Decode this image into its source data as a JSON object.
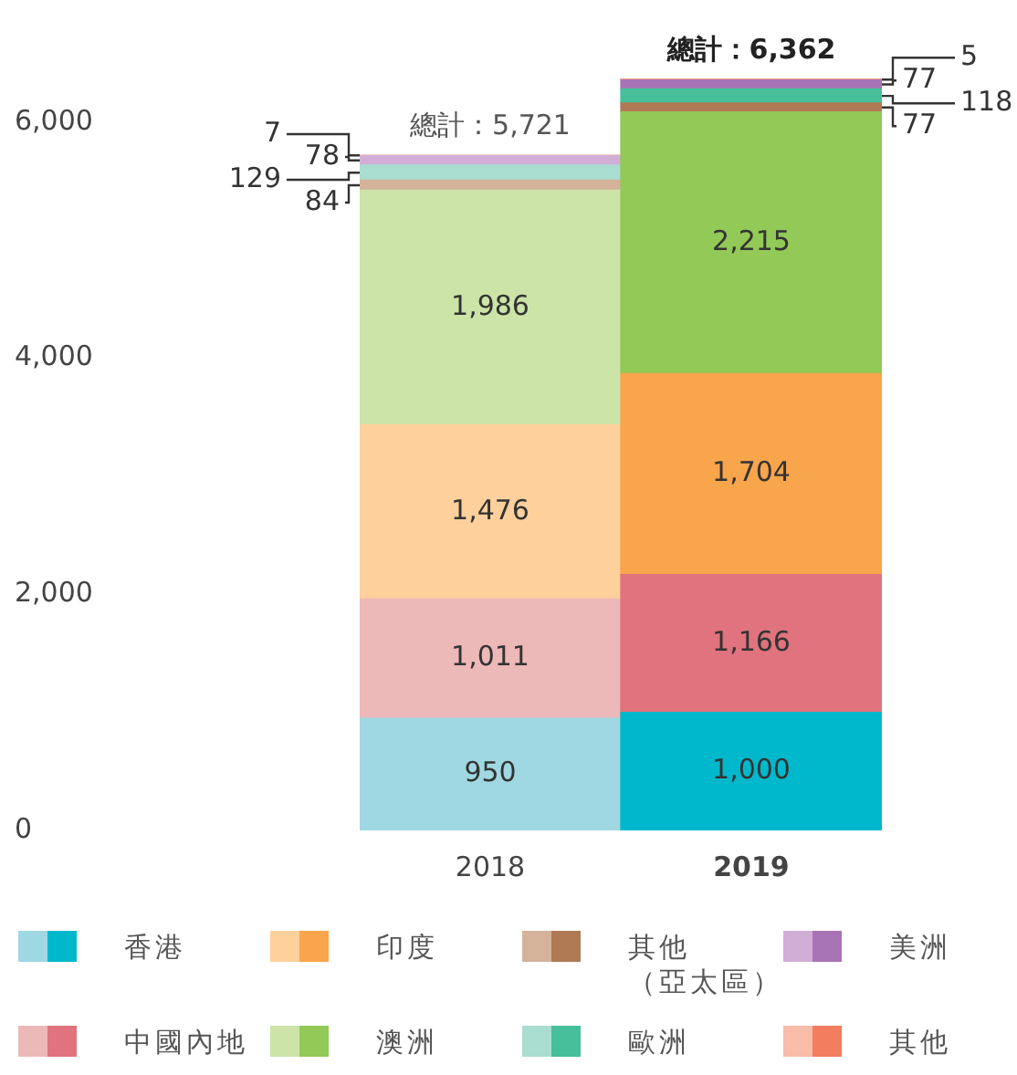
{
  "chart_data": {
    "type": "bar",
    "stacked": true,
    "categories": [
      "2018",
      "2019"
    ],
    "ylim": [
      0,
      6400
    ],
    "yticks": [
      0,
      {
        "value": 2000,
        "label": "2,000"
      },
      {
        "value": 4000,
        "label": "4,000"
      },
      {
        "value": 6000,
        "label": "6,000"
      }
    ],
    "grid": false,
    "legend": "bottom",
    "totals": [
      "總計：5,721",
      "總計：6,362"
    ],
    "series": [
      {
        "name": "香港",
        "colors": [
          "#9fd8e3",
          "#00b8cc"
        ],
        "values": [
          950,
          1000
        ],
        "value_labels": [
          "950",
          "1,000"
        ]
      },
      {
        "name": "中國內地",
        "colors": [
          "#edb8b8",
          "#e0737d"
        ],
        "values": [
          1011,
          1166
        ],
        "value_labels": [
          "1,011",
          "1,166"
        ]
      },
      {
        "name": "印度",
        "colors": [
          "#fdd09c",
          "#f8a54b"
        ],
        "values": [
          1476,
          1704
        ],
        "value_labels": [
          "1,476",
          "1,704"
        ]
      },
      {
        "name": "澳洲",
        "colors": [
          "#cce4a8",
          "#92c957"
        ],
        "values": [
          1986,
          2215
        ],
        "value_labels": [
          "1,986",
          "2,215"
        ]
      },
      {
        "name": "其他（亞太區）",
        "colors": [
          "#d5b39b",
          "#b07a55"
        ],
        "values": [
          84,
          77
        ],
        "value_labels": [
          "84",
          "77"
        ]
      },
      {
        "name": "歐洲",
        "colors": [
          "#a8ddd0",
          "#46bf9a"
        ],
        "values": [
          129,
          118
        ],
        "value_labels": [
          "129",
          "118"
        ]
      },
      {
        "name": "美洲",
        "colors": [
          "#d1aed6",
          "#a874b5"
        ],
        "values": [
          78,
          77
        ],
        "value_labels": [
          "78",
          "77"
        ]
      },
      {
        "name": "其他",
        "colors": [
          "#f8bca8",
          "#f27d5f"
        ],
        "values": [
          7,
          5
        ],
        "value_labels": [
          "7",
          "5"
        ]
      }
    ]
  }
}
